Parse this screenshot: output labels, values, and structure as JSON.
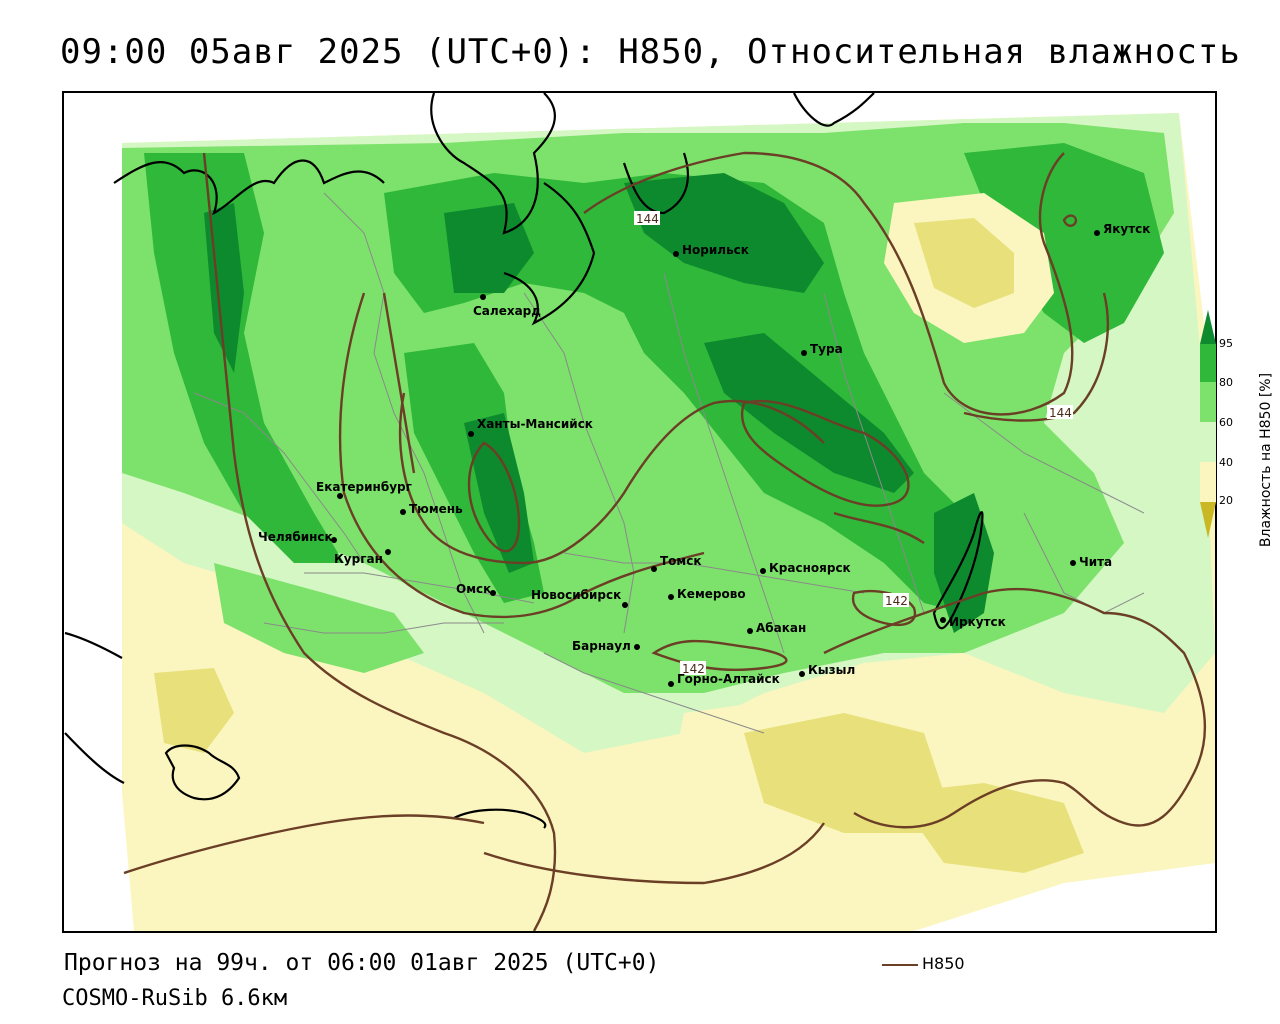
{
  "header": {
    "title": "09:00 05авг 2025 (UTC+0): H850, Относительная влажность"
  },
  "footer": {
    "forecast": "Прогноз на 99ч. от 06:00 01авг 2025 (UTC+0)",
    "model": "COSMO-RuSib 6.6км"
  },
  "legend": {
    "line_label": "H850",
    "line_color": "#6b3e26"
  },
  "colorbar": {
    "title": "Влажность на H850 [%]",
    "ticks": [
      "95",
      "80",
      "60",
      "40",
      "20"
    ],
    "colors": {
      "c95": "#0e8a2e",
      "c80": "#2fb83a",
      "c60": "#7de26b",
      "c40": "#d4f7c4",
      "c20": "#fbf6c0",
      "c_low": "#e8e07a",
      "c_min": "#c9b824"
    }
  },
  "map": {
    "cities": [
      {
        "name": "Якутск"
      },
      {
        "name": "Норильск"
      },
      {
        "name": "Салехард"
      },
      {
        "name": "Тура"
      },
      {
        "name": "Ханты-Мансийск"
      },
      {
        "name": "Екатеринбург"
      },
      {
        "name": "Тюмень"
      },
      {
        "name": "Челябинск"
      },
      {
        "name": "Курган"
      },
      {
        "name": "Омск"
      },
      {
        "name": "Новосибирск"
      },
      {
        "name": "Томск"
      },
      {
        "name": "Кемерово"
      },
      {
        "name": "Красноярск"
      },
      {
        "name": "Барнаул"
      },
      {
        "name": "Абакан"
      },
      {
        "name": "Горно-Алтайск"
      },
      {
        "name": "Кызыл"
      },
      {
        "name": "Иркутск"
      },
      {
        "name": "Чита"
      }
    ],
    "contour_labels": [
      "144",
      "144",
      "142",
      "142"
    ]
  }
}
